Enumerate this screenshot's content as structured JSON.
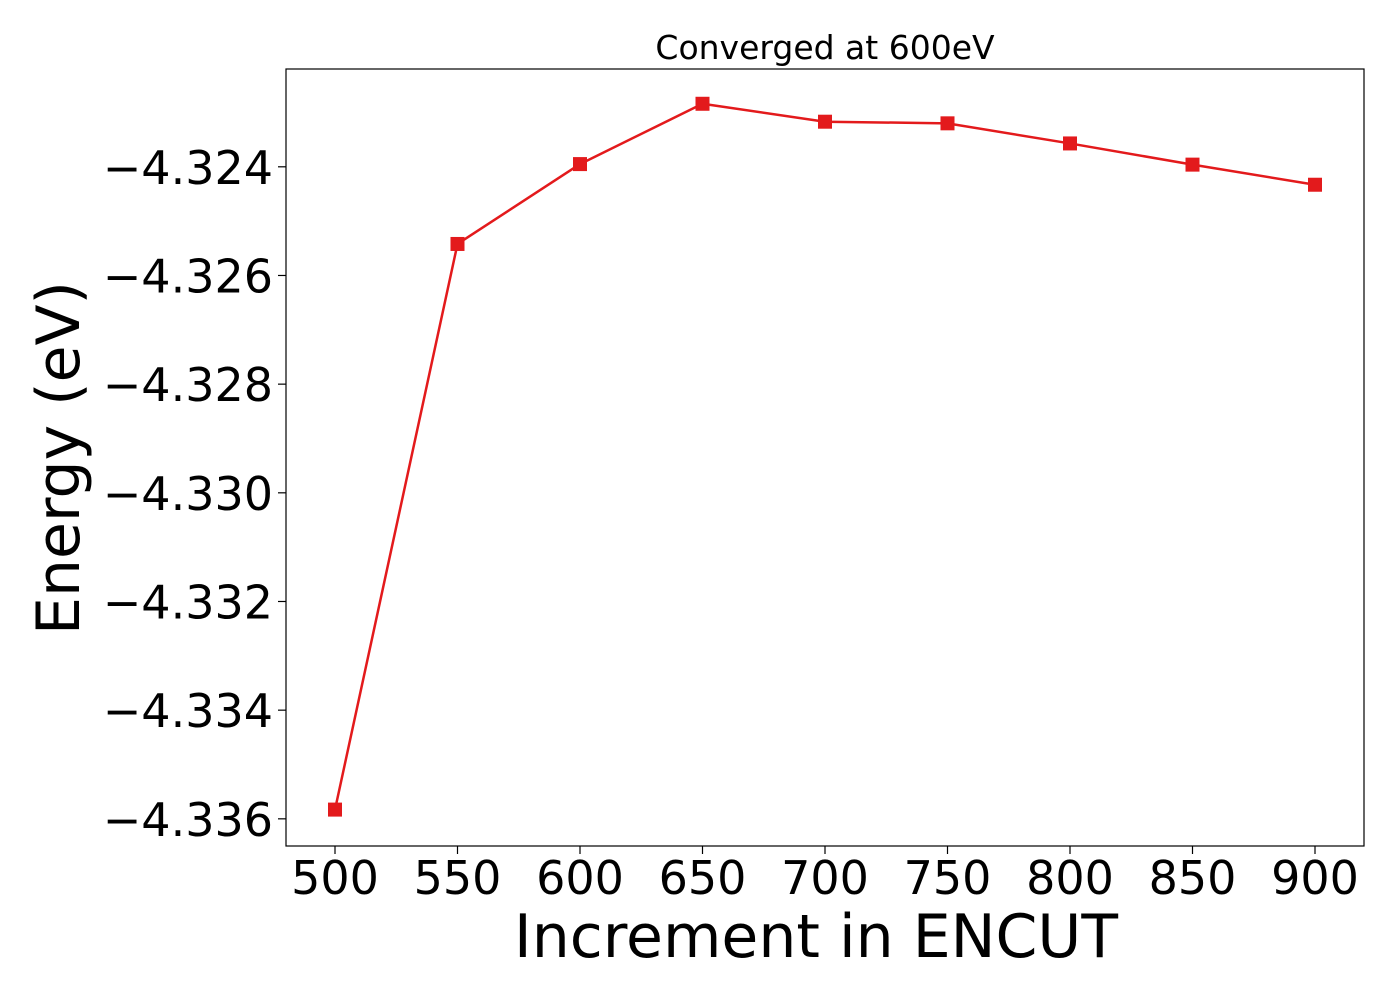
{
  "chart_data": {
    "type": "line",
    "title": "Converged at 600eV",
    "xlabel": "Increment in ENCUT",
    "ylabel": "Energy (eV)",
    "x": [
      500,
      550,
      600,
      650,
      700,
      750,
      800,
      850,
      900
    ],
    "series": [
      {
        "values": [
          -4.33583,
          -4.32542,
          -4.32395,
          -4.32284,
          -4.32317,
          -4.3232,
          -4.32357,
          -4.32396,
          -4.32433
        ],
        "color": "#e31a1c",
        "marker": "square"
      }
    ],
    "xlim": [
      480,
      920
    ],
    "ylim": [
      -4.3365,
      -4.3222
    ],
    "xticks": [
      500,
      550,
      600,
      650,
      700,
      750,
      800,
      850,
      900
    ],
    "xtick_labels": [
      "500",
      "550",
      "600",
      "650",
      "700",
      "750",
      "800",
      "850",
      "900"
    ],
    "yticks": [
      -4.336,
      -4.334,
      -4.332,
      -4.33,
      -4.328,
      -4.326,
      -4.324
    ],
    "ytick_labels": [
      "−4.336",
      "−4.334",
      "−4.332",
      "−4.330",
      "−4.328",
      "−4.326",
      "−4.324"
    ],
    "grid": false,
    "legend": "none"
  }
}
